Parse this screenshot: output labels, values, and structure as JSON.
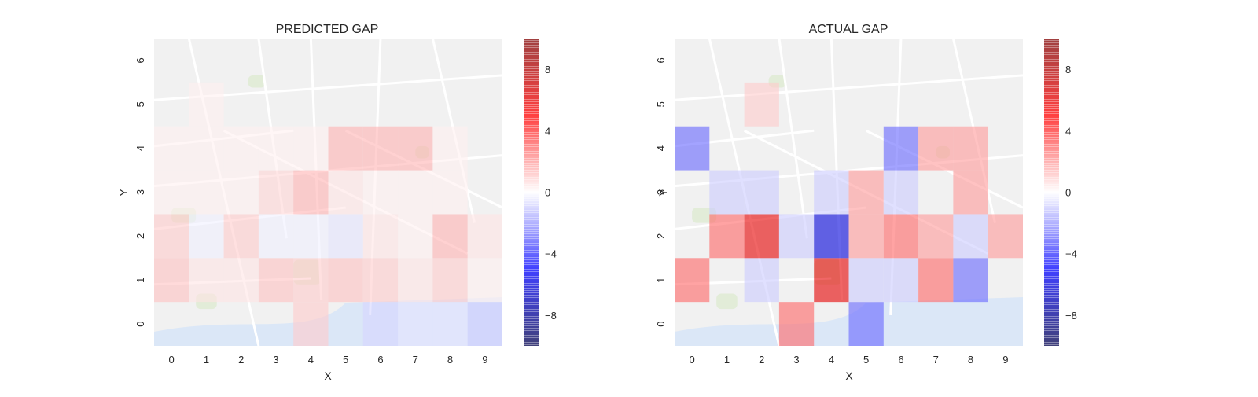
{
  "chart_data": [
    {
      "type": "heatmap",
      "title": "PREDICTED GAP",
      "xlabel": "X",
      "ylabel": "Y",
      "x_ticks": [
        "0",
        "1",
        "2",
        "3",
        "4",
        "5",
        "6",
        "7",
        "8",
        "9"
      ],
      "y_ticks": [
        "0",
        "1",
        "2",
        "3",
        "4",
        "5",
        "6"
      ],
      "background": "street map of Porto",
      "values": [
        [
          0.0,
          0.0,
          0.0,
          0.0,
          1.0,
          0.0,
          -0.8,
          -0.5,
          -0.5,
          -1.0
        ],
        [
          1.2,
          0.5,
          0.5,
          1.2,
          1.0,
          1.2,
          1.0,
          0.5,
          1.0,
          0.3
        ],
        [
          1.0,
          -0.3,
          1.0,
          -0.3,
          -0.3,
          -0.5,
          0.5,
          0.3,
          1.5,
          0.5
        ],
        [
          0.3,
          0.3,
          0.3,
          0.8,
          1.5,
          0.5,
          0.3,
          0.3,
          0.3,
          0.0
        ],
        [
          0.3,
          0.3,
          0.3,
          0.3,
          0.3,
          1.5,
          1.5,
          1.5,
          0.3,
          0.0
        ],
        [
          0.0,
          0.3,
          0.0,
          0.0,
          0.0,
          0.0,
          0.0,
          0.0,
          0.0,
          0.0
        ],
        [
          0.0,
          0.0,
          0.0,
          0.0,
          0.0,
          0.0,
          0.0,
          0.0,
          0.0,
          0.0
        ]
      ],
      "colorbar": {
        "min": -10,
        "max": 10,
        "ticks": [
          -8,
          -4,
          0,
          4,
          8
        ],
        "colormap": "seismic"
      }
    },
    {
      "type": "heatmap",
      "title": "ACTUAL GAP",
      "xlabel": "X",
      "ylabel": "Y",
      "x_ticks": [
        "0",
        "1",
        "2",
        "3",
        "4",
        "5",
        "6",
        "7",
        "8",
        "9"
      ],
      "y_ticks": [
        "0",
        "1",
        "2",
        "3",
        "4",
        "5",
        "6"
      ],
      "background": "street map of Porto",
      "values": [
        [
          0,
          0,
          0,
          3,
          0,
          -3,
          0,
          0,
          0,
          0
        ],
        [
          3,
          0,
          -1,
          0,
          6,
          -1,
          -1,
          3,
          -3,
          0
        ],
        [
          0,
          3,
          6,
          -1,
          -6,
          2,
          3,
          2,
          -1,
          2
        ],
        [
          0,
          -1,
          -1,
          0,
          -1,
          2,
          -1,
          0,
          2,
          0
        ],
        [
          -3,
          0,
          0,
          0,
          0,
          0,
          -3,
          2,
          2,
          0
        ],
        [
          0,
          0,
          1,
          0,
          0,
          0,
          0,
          0,
          0,
          0
        ],
        [
          0,
          0,
          0,
          0,
          0,
          0,
          0,
          0,
          0,
          0
        ]
      ],
      "colorbar": {
        "min": -10,
        "max": 10,
        "ticks": [
          -8,
          -4,
          0,
          4,
          8
        ],
        "colormap": "seismic"
      }
    }
  ]
}
